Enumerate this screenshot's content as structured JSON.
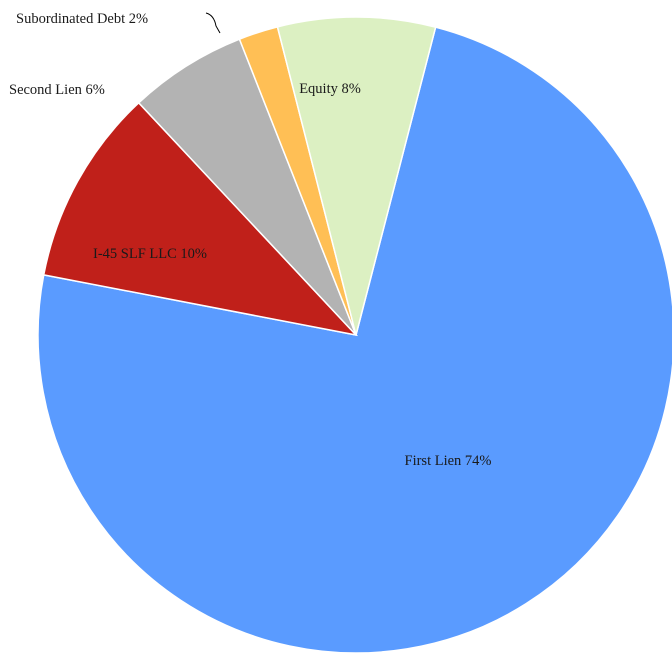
{
  "chart_data": {
    "type": "pie",
    "title": "",
    "slices": [
      {
        "label": "First Lien 74%",
        "category": "First Lien",
        "value": 74,
        "color": "#5a9bff"
      },
      {
        "label": "I-45 SLF LLC 10%",
        "category": "I-45 SLF LLC",
        "value": 10,
        "color": "#c0201a"
      },
      {
        "label": "Second Lien 6%",
        "category": "Second Lien",
        "value": 6,
        "color": "#b3b3b3"
      },
      {
        "label": "Subordinated Debt 2%",
        "category": "Subordinated Debt",
        "value": 2,
        "color": "#ffbf55"
      },
      {
        "label": "Equity 8%",
        "category": "Equity",
        "value": 8,
        "color": "#dcf0c2"
      }
    ]
  }
}
